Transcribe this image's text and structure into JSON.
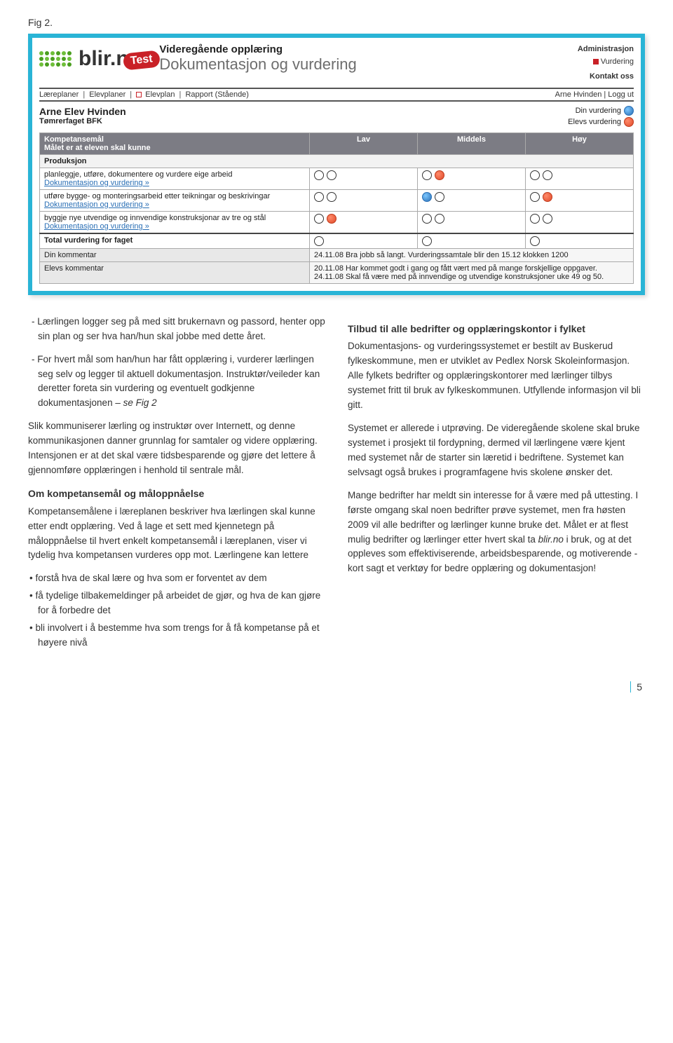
{
  "figLabel": "Fig 2.",
  "logo": {
    "brand": "blir.n",
    "badge": "Test"
  },
  "titles": {
    "line1": "Videregående opplæring",
    "line2": "Dokumentasjon og vurdering"
  },
  "rightLinks": {
    "admin": "Administrasjon",
    "vurd": "Vurdering",
    "kontakt": "Kontakt oss"
  },
  "nav": {
    "items": [
      "Læreplaner",
      "Elevplaner",
      "Elevplan",
      "Rapport (Stående)"
    ],
    "user": "Arne Hvinden",
    "logout": "Logg ut"
  },
  "student": {
    "name": "Arne Elev Hvinden",
    "class": "Tømrerfaget BFK"
  },
  "legend": {
    "din": "Din vurdering",
    "elevs": "Elevs vurdering"
  },
  "table": {
    "headerTitle": "Kompetansemål",
    "headerSub": "Målet er at eleven skal kunne",
    "cols": [
      "Lav",
      "Middels",
      "Høy"
    ],
    "category": "Produksjon",
    "docLink": "Dokumentasjon og vurdering »",
    "goals": [
      {
        "text": "planleggje, utføre, dokumentere og vurdere eige arbeid",
        "marks": [
          {
            "din": "empty",
            "elevs": "empty"
          },
          {
            "din": "empty",
            "elevs": "filled-red"
          },
          {
            "din": "empty",
            "elevs": "empty"
          }
        ]
      },
      {
        "text": "utføre bygge- og monteringsarbeid etter teikningar og beskrivingar",
        "marks": [
          {
            "din": "empty",
            "elevs": "empty"
          },
          {
            "din": "filled-blue",
            "elevs": "empty"
          },
          {
            "din": "empty",
            "elevs": "filled-red"
          }
        ]
      },
      {
        "text": "byggje nye utvendige og innvendige konstruksjonar av tre og stål",
        "marks": [
          {
            "din": "empty",
            "elevs": "filled-red"
          },
          {
            "din": "empty",
            "elevs": "empty"
          },
          {
            "din": "empty",
            "elevs": "empty"
          }
        ]
      }
    ],
    "totalLabel": "Total vurdering for faget",
    "totalMarks": [
      {
        "v": "empty"
      },
      {
        "v": "empty"
      },
      {
        "v": "empty"
      }
    ],
    "dinKommentarLabel": "Din kommentar",
    "dinKommentar": "24.11.08 Bra jobb så langt. Vurderingssamtale blir den 15.12 klokken 1200",
    "elevsKommentarLabel": "Elevs kommentar",
    "elevsKommentar": "20.11.08 Har kommet godt i gang og fått vært med på mange forskjellige oppgaver.\n24.11.08 Skal få være med på innvendige og utvendige konstruksjoner uke 49 og 50."
  },
  "article": {
    "left": {
      "p1": "Lærlingen logger seg på med sitt brukernavn og passord, henter opp sin plan og ser hva han/hun skal jobbe med dette året.",
      "p2": "For hvert mål som han/hun har fått opplæring i, vurderer lærlingen seg selv og legger til aktuell dokumentasjon. Instruktør/veileder kan deretter foreta sin vurdering og eventuelt godkjenne dokumentasjonen – ",
      "p2em": "se Fig 2",
      "p3": "Slik kommuniserer lærling og instruktør over Internett, og denne kommunikasjonen danner grunnlag for samtaler og videre opplæring. Intensjonen er at det skal være tidsbesparende og gjøre det lettere å gjennomføre opplæringen i henhold til sentrale mål.",
      "h1": "Om kompetansemål og måloppnåelse",
      "p4": "Kompetansemålene i læreplanen beskriver hva lærlingen skal kunne etter endt opplæring. Ved å lage et sett med kjennetegn på måloppnåelse til hvert enkelt kompetansemål i læreplanen, viser vi tydelig hva kompetansen vurderes opp mot. Lærlingene kan lettere",
      "b1": "forstå hva de skal lære og hva som er forventet av dem",
      "b2": "få tydelige tilbakemeldinger på arbeidet de gjør, og hva de kan gjøre for å forbedre det",
      "b3": "bli involvert i å bestemme hva som trengs for å få kompetanse på et høyere nivå"
    },
    "right": {
      "h1": "Tilbud til alle bedrifter og opplæringskontor i fylket",
      "p1": "Dokumentasjons- og vurderingssystemet er bestilt av Buskerud fylkeskommune, men er utviklet av Pedlex Norsk Skoleinformasjon. Alle fylkets bedrifter og opplæringskontorer med lærlinger tilbys systemet fritt til bruk av fylkeskommunen. Utfyllende informasjon vil bli gitt.",
      "p2": "Systemet er allerede i utprøving. De videregående skolene skal bruke systemet i prosjekt til fordypning, dermed vil lærlingene være kjent med systemet når de starter sin læretid i bedriftene. Systemet kan selvsagt også brukes i programfagene hvis skolene ønsker det.",
      "p3a": "Mange bedrifter har meldt sin interesse for å være med på uttesting. I første omgang skal noen bedrifter prøve systemet, men fra høsten 2009 vil alle bedrifter og lærlinger kunne bruke det. Målet er at flest mulig bedrifter og lærlinger etter hvert skal ta ",
      "p3em": "blir.no",
      "p3b": " i bruk, og at det oppleves som effektiviserende, arbeidsbesparende, og motiverende - kort sagt et verktøy for bedre opplæring og dokumentasjon!"
    }
  },
  "pageNumber": "5"
}
